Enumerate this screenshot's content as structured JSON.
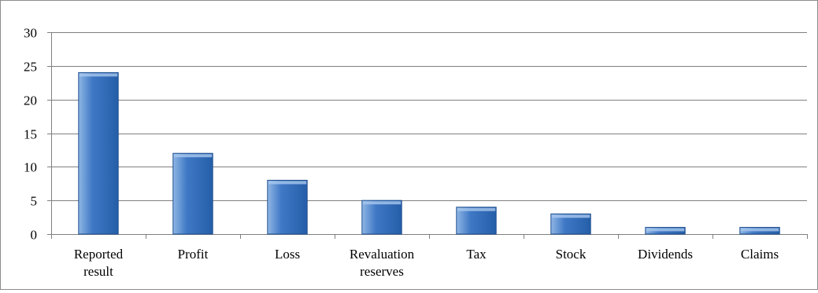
{
  "chart_data": {
    "type": "bar",
    "title": "",
    "xlabel": "",
    "ylabel": "",
    "categories": [
      [
        "Reported",
        "result"
      ],
      [
        "Profit"
      ],
      [
        "Loss"
      ],
      [
        "Revaluation",
        "reserves"
      ],
      [
        "Tax"
      ],
      [
        "Stock"
      ],
      [
        "Dividends"
      ],
      [
        "Claims"
      ]
    ],
    "values": [
      24,
      12,
      8,
      5,
      4,
      3,
      1,
      1
    ],
    "ylim": [
      0,
      30
    ],
    "yticks": [
      "0",
      "5",
      "10",
      "15",
      "20",
      "25",
      "30"
    ],
    "grid": true,
    "legend": "none",
    "colors": {
      "bar_top": "#8fb6e4",
      "bar_mid": "#3f78c5",
      "bar_bottom": "#255ea8",
      "bar_edge": "#1f4f8f",
      "grid": "#7f7f7f",
      "axis": "#7f7f7f"
    }
  }
}
